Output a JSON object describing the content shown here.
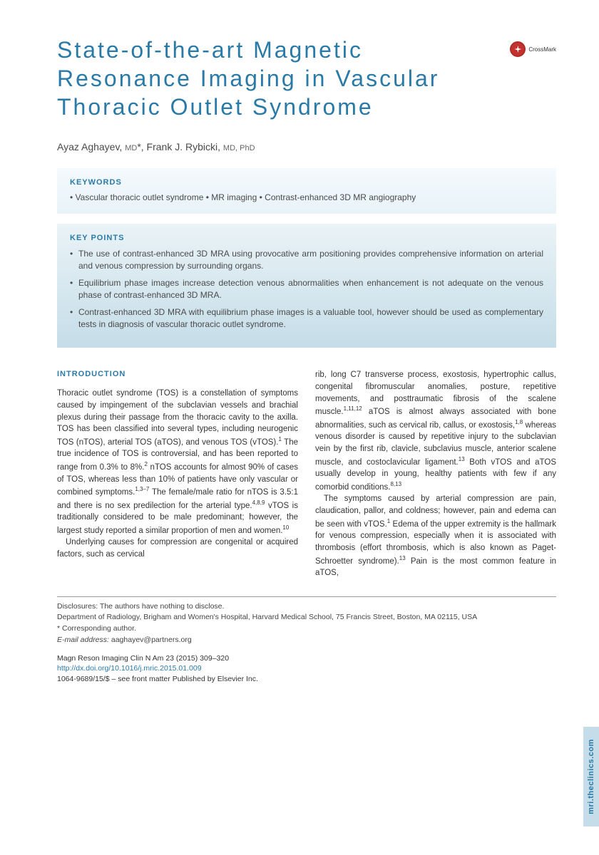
{
  "title": "State-of-the-art Magnetic Resonance Imaging in Vascular Thoracic Outlet Syndrome",
  "crossmark_label": "CrossMark",
  "authors_html": "Ayaz Aghayev, <span class=\"md\">MD</span>*, Frank J. Rybicki, <span class=\"md\">MD, PhD</span>",
  "keywords_heading": "KEYWORDS",
  "keywords_line": "• Vascular thoracic outlet syndrome • MR imaging • Contrast-enhanced 3D MR angiography",
  "keypoints_heading": "KEY POINTS",
  "keypoints": [
    "The use of contrast-enhanced 3D MRA using provocative arm positioning provides comprehensive information on arterial and venous compression by surrounding organs.",
    "Equilibrium phase images increase detection venous abnormalities when enhancement is not adequate on the venous phase of contrast-enhanced 3D MRA.",
    "Contrast-enhanced 3D MRA with equilibrium phase images is a valuable tool, however should be used as complementary tests in diagnosis of vascular thoracic outlet syndrome."
  ],
  "intro_heading": "INTRODUCTION",
  "col1_p1": "Thoracic outlet syndrome (TOS) is a constellation of symptoms caused by impingement of the subclavian vessels and brachial plexus during their passage from the thoracic cavity to the axilla. TOS has been classified into several types, including neurogenic TOS (nTOS), arterial TOS (aTOS), and venous TOS (vTOS).<sup>1</sup> The true incidence of TOS is controversial, and has been reported to range from 0.3% to 8%.<sup>2</sup> nTOS accounts for almost 90% of cases of TOS, whereas less than 10% of patients have only vascular or combined symptoms.<sup>1,3–7</sup> The female/male ratio for nTOS is 3.5:1 and there is no sex predilection for the arterial type.<sup>4,8,9</sup> vTOS is traditionally considered to be male predominant; however, the largest study reported a similar proportion of men and women.<sup>10</sup>",
  "col1_p2": "Underlying causes for compression are congenital or acquired factors, such as cervical",
  "col2_p1": "rib, long C7 transverse process, exostosis, hypertrophic callus, congenital fibromuscular anomalies, posture, repetitive movements, and posttraumatic fibrosis of the scalene muscle.<sup>1,11,12</sup> aTOS is almost always associated with bone abnormalities, such as cervical rib, callus, or exostosis,<sup>1,8</sup> whereas venous disorder is caused by repetitive injury to the subclavian vein by the first rib, clavicle, subclavius muscle, anterior scalene muscle, and costoclavicular ligament.<sup>13</sup> Both vTOS and aTOS usually develop in young, healthy patients with few if any comorbid conditions.<sup>8,13</sup>",
  "col2_p2": "The symptoms caused by arterial compression are pain, claudication, pallor, and coldness; however, pain and edema can be seen with vTOS.<sup>1</sup> Edema of the upper extremity is the hallmark for venous compression, especially when it is associated with thrombosis (effort thrombosis, which is also known as Paget-Schroetter syndrome).<sup>13</sup> Pain is the most common feature in aTOS,",
  "disclosures": "Disclosures: The authors have nothing to disclose.",
  "affiliation": "Department of Radiology, Brigham and Women's Hospital, Harvard Medical School, 75 Francis Street, Boston, MA 02115, USA",
  "corresponding": "* Corresponding author.",
  "email_label": "E-mail address:",
  "email": "aaghayev@partners.org",
  "citation_line": "Magn Reson Imaging Clin N Am 23 (2015) 309–320",
  "doi": "http://dx.doi.org/10.1016/j.mric.2015.01.009",
  "copyright_line": "1064-9689/15/$ – see front matter Published by Elsevier Inc.",
  "side_tab": "mri.theclinics.com",
  "colors": {
    "accent": "#2a7aa8",
    "box_grad_top": "#f4fafd",
    "box_grad_bottom": "#e8f3f8",
    "kp_grad_top": "#eaf3f7",
    "kp_grad_bottom": "#c5dde8",
    "text": "#333333",
    "muted": "#4a4a4a"
  }
}
